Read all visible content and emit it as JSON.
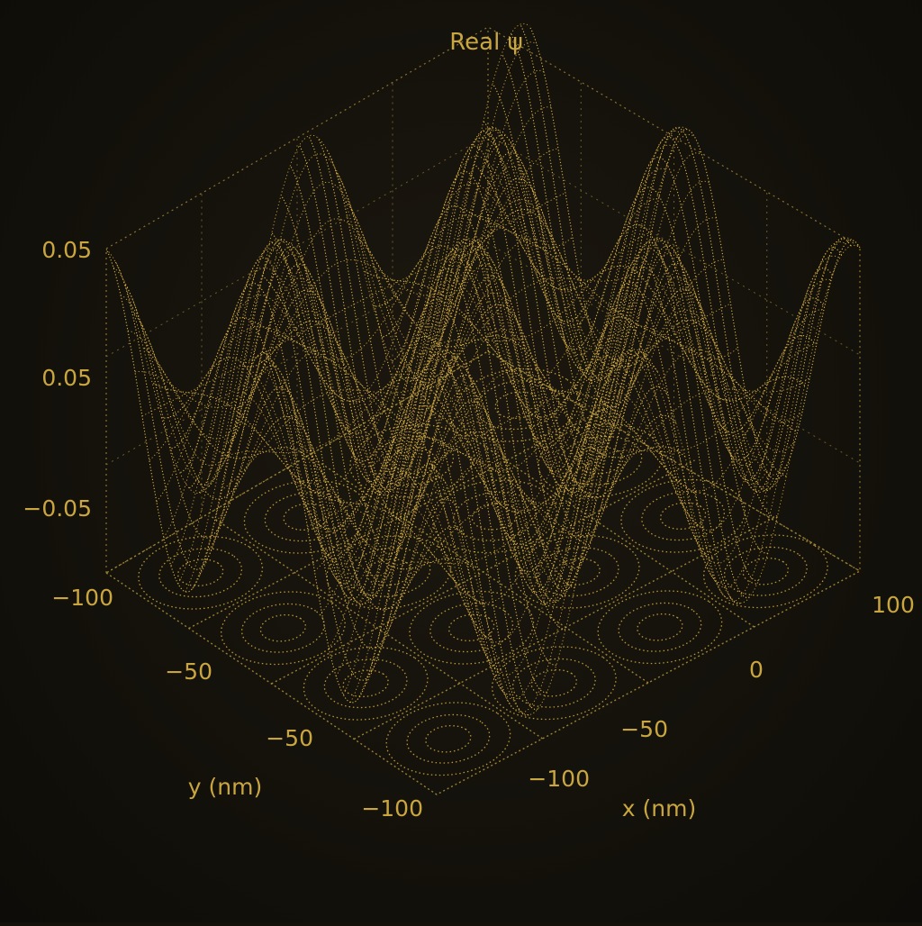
{
  "chart_data": {
    "type": "surface3d",
    "title": "Real ψ",
    "xlabel": "x (nm)",
    "ylabel": "y (nm)",
    "zlabel": "",
    "x_range": [
      -100,
      100
    ],
    "y_range": [
      -100,
      100
    ],
    "z_ticks": [
      "0.05",
      "0.05",
      "−0.05"
    ],
    "x_ticks": [
      "−100",
      "−50",
      "0",
      "100"
    ],
    "y_ticks": [
      "−100",
      "−50",
      "−50",
      "−100"
    ],
    "surface": {
      "function": "amplitude * cos(kx * x) * cos(ky * y)",
      "amplitude": 0.05,
      "peaks_x": 4,
      "peaks_y": 4
    },
    "colors": {
      "surface": "#d9b34a",
      "background": "#14110a",
      "text": "#c9a640"
    },
    "grid": true,
    "floor_contours": true
  }
}
